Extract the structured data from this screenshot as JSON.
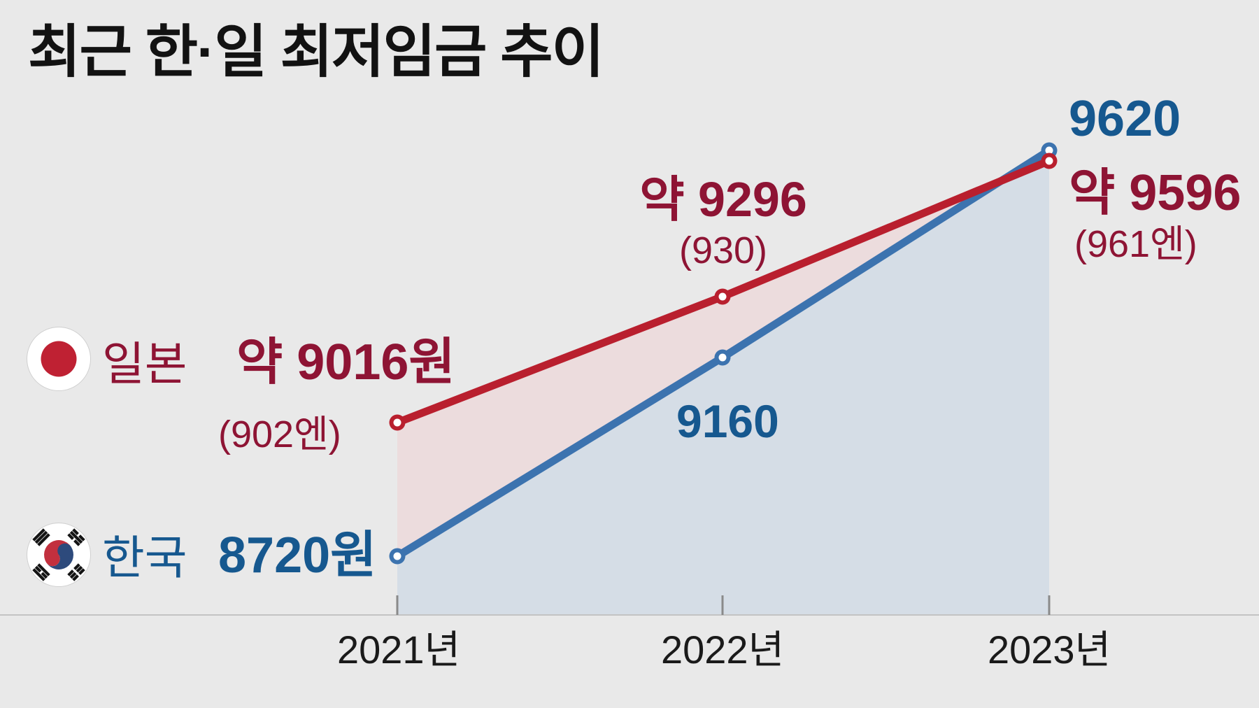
{
  "title": "최근 한·일 최저임금 추이",
  "chart_data": {
    "type": "line",
    "x_categories": [
      "2021년",
      "2022년",
      "2023년"
    ],
    "series": [
      {
        "name": "일본",
        "color": "#b91f2e",
        "text_color": "#8e1434",
        "values_won": [
          9016,
          9296,
          9596
        ],
        "values_yen": [
          902,
          930,
          961
        ],
        "labels": [
          "약 9016원",
          "약 9296",
          "약 9596"
        ],
        "sub_labels": [
          "(902엔)",
          "(930)",
          "(961엔)"
        ]
      },
      {
        "name": "한국",
        "color": "#3c73af",
        "text_color": "#16588f",
        "values_won": [
          8720,
          9160,
          9620
        ],
        "labels": [
          "8720원",
          "9160",
          "9620"
        ]
      }
    ],
    "legend_position": "left",
    "grid": false,
    "fills": {
      "between_lines": "#ecdcdd",
      "under_korea_line": "#d5dde6"
    },
    "axis": {
      "baseline_color": "#c3c3c3",
      "tick_color": "#8a8a8a"
    }
  },
  "icons": {
    "japan_flag": "japan-flag-icon",
    "korea_flag": "korea-flag-icon"
  }
}
